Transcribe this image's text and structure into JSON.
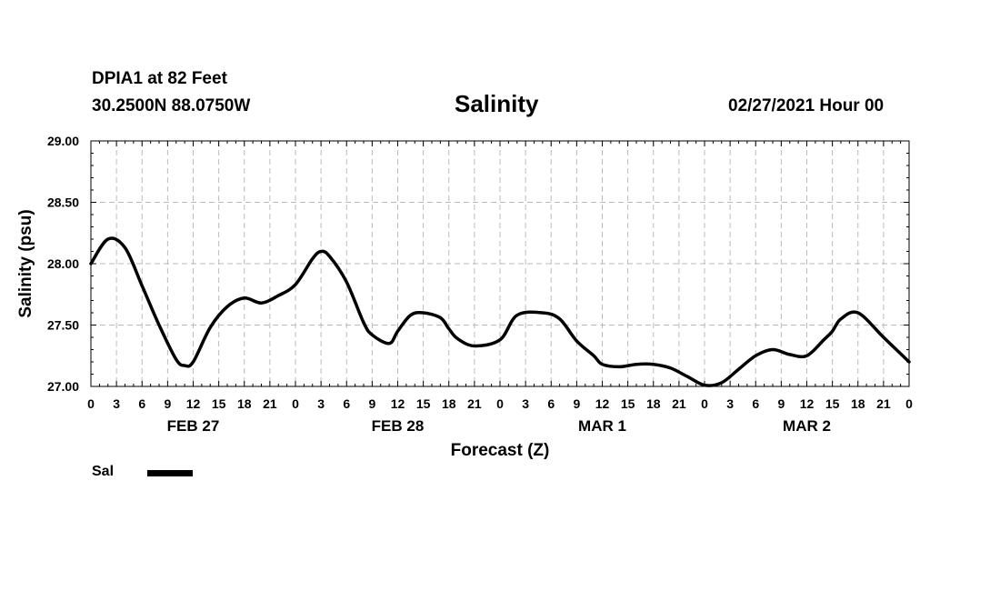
{
  "header": {
    "station": "DPIA1 at 82 Feet",
    "coords": "30.2500N 88.0750W",
    "title": "Salinity",
    "timestamp": "02/27/2021 Hour 00"
  },
  "chart_data": {
    "type": "line",
    "title": "Salinity",
    "xlabel": "Forecast (Z)",
    "ylabel": "Salinity (psu)",
    "xlim": [
      0,
      96
    ],
    "ylim": [
      27.0,
      29.0
    ],
    "yticks": [
      "27.00",
      "27.50",
      "28.00",
      "28.50",
      "29.00"
    ],
    "ytick_values": [
      27.0,
      27.5,
      28.0,
      28.5,
      29.0
    ],
    "xtick_labels": [
      "0",
      "3",
      "6",
      "9",
      "12",
      "15",
      "18",
      "21",
      "0",
      "3",
      "6",
      "9",
      "12",
      "15",
      "18",
      "21",
      "0",
      "3",
      "6",
      "9",
      "12",
      "15",
      "18",
      "21",
      "0",
      "3",
      "6",
      "9",
      "12",
      "15",
      "18",
      "21",
      "0"
    ],
    "day_labels": [
      {
        "label": "FEB 27",
        "hour": 12
      },
      {
        "label": "FEB 28",
        "hour": 36
      },
      {
        "label": "MAR 1",
        "hour": 60
      },
      {
        "label": "MAR 2",
        "hour": 84
      }
    ],
    "grid": true,
    "series": [
      {
        "name": "Sal",
        "color": "#000000",
        "x": [
          0,
          2,
          4,
          6,
          8,
          10,
          11,
          12,
          14,
          16,
          18,
          20,
          22,
          24,
          26,
          27,
          28,
          30,
          32,
          33,
          35,
          36,
          37.5,
          39,
          41,
          42,
          43,
          45,
          48,
          50,
          53,
          55,
          57,
          59,
          60,
          62,
          64,
          66,
          68,
          70,
          72,
          74,
          76,
          78,
          80,
          82,
          84,
          86,
          87,
          88,
          90,
          93,
          96
        ],
        "values": [
          28.0,
          28.2,
          28.13,
          27.82,
          27.5,
          27.22,
          27.17,
          27.2,
          27.48,
          27.65,
          27.72,
          27.68,
          27.74,
          27.83,
          28.04,
          28.1,
          28.06,
          27.85,
          27.52,
          27.42,
          27.35,
          27.45,
          27.58,
          27.6,
          27.56,
          27.47,
          27.39,
          27.33,
          27.38,
          27.58,
          27.6,
          27.55,
          27.37,
          27.25,
          27.18,
          27.16,
          27.18,
          27.18,
          27.15,
          27.08,
          27.01,
          27.03,
          27.14,
          27.25,
          27.3,
          27.26,
          27.25,
          27.38,
          27.45,
          27.55,
          27.6,
          27.4,
          27.2
        ]
      }
    ],
    "legend": {
      "label": "Sal",
      "placement": "bottom-left"
    }
  }
}
